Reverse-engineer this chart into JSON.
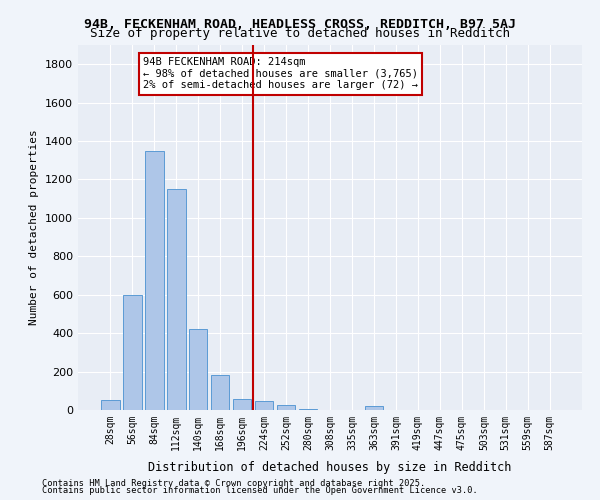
{
  "title1": "94B, FECKENHAM ROAD, HEADLESS CROSS, REDDITCH, B97 5AJ",
  "title2": "Size of property relative to detached houses in Redditch",
  "xlabel": "Distribution of detached houses by size in Redditch",
  "ylabel": "Number of detached properties",
  "categories": [
    "28sqm",
    "56sqm",
    "84sqm",
    "112sqm",
    "140sqm",
    "168sqm",
    "196sqm",
    "224sqm",
    "252sqm",
    "280sqm",
    "308sqm",
    "335sqm",
    "363sqm",
    "391sqm",
    "419sqm",
    "447sqm",
    "475sqm",
    "503sqm",
    "531sqm",
    "559sqm",
    "587sqm"
  ],
  "values": [
    50,
    600,
    1350,
    1150,
    420,
    180,
    55,
    45,
    25,
    5,
    0,
    0,
    20,
    0,
    0,
    0,
    0,
    0,
    0,
    0,
    0
  ],
  "bar_color": "#aec6e8",
  "bar_edge_color": "#5b9bd5",
  "vline_x": 7,
  "vline_color": "#c00000",
  "vline_label": "94B FECKENHAM ROAD: 214sqm",
  "annotation_line1": "94B FECKENHAM ROAD: 214sqm",
  "annotation_line2": "← 98% of detached houses are smaller (3,765)",
  "annotation_line3": "2% of semi-detached houses are larger (72) →",
  "annotation_box_color": "#c00000",
  "ylim": [
    0,
    1900
  ],
  "yticks": [
    0,
    200,
    400,
    600,
    800,
    1000,
    1200,
    1400,
    1600,
    1800
  ],
  "bg_color": "#e8edf5",
  "grid_color": "#ffffff",
  "footer1": "Contains HM Land Registry data © Crown copyright and database right 2025.",
  "footer2": "Contains public sector information licensed under the Open Government Licence v3.0."
}
